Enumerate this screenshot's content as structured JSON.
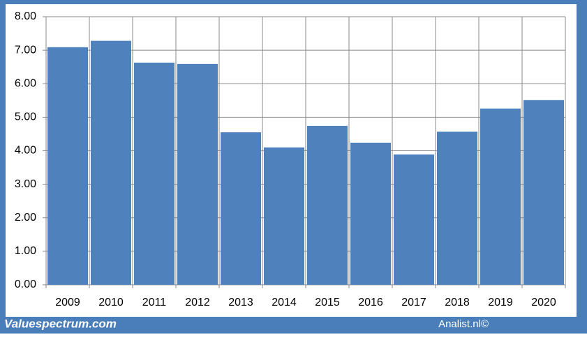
{
  "chart_data": {
    "type": "bar",
    "categories": [
      "2009",
      "2010",
      "2011",
      "2012",
      "2013",
      "2014",
      "2015",
      "2016",
      "2017",
      "2018",
      "2019",
      "2020"
    ],
    "values": [
      7.09,
      7.28,
      6.63,
      6.59,
      4.55,
      4.1,
      4.74,
      4.24,
      3.89,
      4.57,
      5.26,
      5.51
    ],
    "color": "#4f81bd",
    "ylim": [
      0,
      8
    ],
    "yticks": [
      {
        "value": 0,
        "label": "0.00"
      },
      {
        "value": 1,
        "label": "1.00"
      },
      {
        "value": 2,
        "label": "2.00"
      },
      {
        "value": 3,
        "label": "3.00"
      },
      {
        "value": 4,
        "label": "4.00"
      },
      {
        "value": 5,
        "label": "5.00"
      },
      {
        "value": 6,
        "label": "6.00"
      },
      {
        "value": 7,
        "label": "7.00"
      },
      {
        "value": 8,
        "label": "8.00"
      }
    ],
    "grid": true
  },
  "footer": {
    "left": "Valuespectrum.com",
    "right": "Analist.nl©"
  }
}
